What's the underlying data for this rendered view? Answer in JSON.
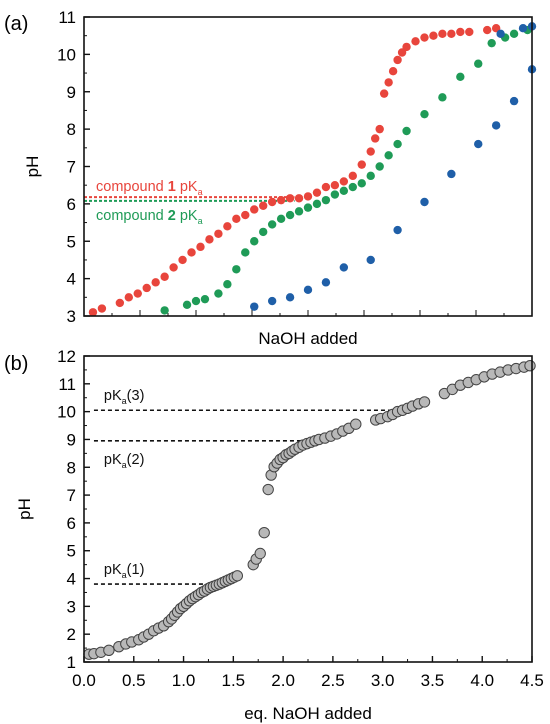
{
  "chart_data": [
    {
      "panel_label": "(a)",
      "type": "scatter",
      "title": "",
      "xlabel": "NaOH added",
      "ylabel": "pH",
      "xlim": [
        0,
        1
      ],
      "ylim": [
        3,
        11
      ],
      "yticks": [
        3,
        4,
        5,
        6,
        7,
        8,
        9,
        10,
        11
      ],
      "x_tick_labels_shown": false,
      "grid": false,
      "legend": "none",
      "series": [
        {
          "color": "#e8453c",
          "x": [
            0.02,
            0.04,
            0.08,
            0.1,
            0.12,
            0.14,
            0.16,
            0.18,
            0.2,
            0.22,
            0.24,
            0.26,
            0.28,
            0.3,
            0.32,
            0.34,
            0.36,
            0.38,
            0.4,
            0.42,
            0.44,
            0.46,
            0.48,
            0.5,
            0.52,
            0.54,
            0.56,
            0.58,
            0.6,
            0.62,
            0.64,
            0.65,
            0.66,
            0.67,
            0.68,
            0.69,
            0.7,
            0.71,
            0.72,
            0.74,
            0.76,
            0.78,
            0.8,
            0.82,
            0.84,
            0.86,
            0.9,
            0.92
          ],
          "y": [
            3.1,
            3.2,
            3.35,
            3.5,
            3.6,
            3.75,
            3.9,
            4.05,
            4.3,
            4.5,
            4.7,
            4.85,
            5.05,
            5.2,
            5.4,
            5.6,
            5.7,
            5.85,
            5.95,
            6.05,
            6.1,
            6.15,
            6.15,
            6.2,
            6.3,
            6.45,
            6.5,
            6.6,
            6.75,
            7.05,
            7.4,
            7.75,
            8.0,
            8.95,
            9.25,
            9.55,
            9.85,
            10.05,
            10.2,
            10.35,
            10.45,
            10.5,
            10.55,
            10.55,
            10.6,
            10.6,
            10.65,
            10.7
          ]
        },
        {
          "color": "#1f9b57",
          "x": [
            0.18,
            0.23,
            0.25,
            0.27,
            0.3,
            0.32,
            0.34,
            0.36,
            0.38,
            0.4,
            0.42,
            0.44,
            0.46,
            0.48,
            0.5,
            0.52,
            0.54,
            0.56,
            0.58,
            0.6,
            0.62,
            0.64,
            0.66,
            0.68,
            0.7,
            0.72,
            0.76,
            0.8,
            0.84,
            0.88,
            0.91,
            0.94,
            0.96,
            0.99
          ],
          "y": [
            3.15,
            3.3,
            3.4,
            3.45,
            3.6,
            3.85,
            4.25,
            4.7,
            5.0,
            5.25,
            5.45,
            5.6,
            5.7,
            5.8,
            5.9,
            6.0,
            6.1,
            6.25,
            6.35,
            6.45,
            6.55,
            6.75,
            7.0,
            7.3,
            7.6,
            7.95,
            8.4,
            8.85,
            9.4,
            9.75,
            10.3,
            10.45,
            10.55,
            10.65
          ]
        },
        {
          "color": "#1f5fa8",
          "x": [
            0.38,
            0.42,
            0.46,
            0.5,
            0.54,
            0.58,
            0.64,
            0.7,
            0.76,
            0.82,
            0.88,
            0.92,
            0.96,
            1.0
          ],
          "y": [
            3.25,
            3.4,
            3.5,
            3.7,
            3.9,
            4.3,
            4.5,
            5.3,
            6.05,
            6.8,
            7.6,
            8.1,
            8.75,
            9.6
          ]
        },
        {
          "color": "#1f5fa8",
          "x": [
            0.93,
            0.98,
            1.0
          ],
          "y": [
            10.55,
            10.7,
            10.75
          ]
        }
      ],
      "reference_lines": [
        {
          "y": 6.18,
          "color": "#e8453c",
          "label_prefix": "compound ",
          "label_bold": "1",
          "label_suffix": " pK",
          "label_sub": "a"
        },
        {
          "y": 6.08,
          "color": "#1f9b57",
          "label_prefix": "compound ",
          "label_bold": "2",
          "label_suffix": " pK",
          "label_sub": "a"
        }
      ]
    },
    {
      "panel_label": "(b)",
      "type": "scatter",
      "title": "",
      "xlabel": "eq. NaOH added",
      "ylabel": "pH",
      "xlim": [
        0,
        4.5
      ],
      "ylim": [
        1,
        12
      ],
      "xticks": [
        0.0,
        0.5,
        1.0,
        1.5,
        2.0,
        2.5,
        3.0,
        3.5,
        4.0,
        4.5
      ],
      "xtick_labels": [
        "0.0",
        "0.5",
        "1.0",
        "1.5",
        "2.0",
        "2.5",
        "3.0",
        "3.5",
        "4.0",
        "4.5"
      ],
      "yticks": [
        1,
        2,
        3,
        4,
        5,
        6,
        7,
        8,
        9,
        10,
        11,
        12
      ],
      "grid": false,
      "legend": "none",
      "series": [
        {
          "color": "#b8b8b8",
          "x": [
            0.05,
            0.1,
            0.17,
            0.25,
            0.35,
            0.42,
            0.48,
            0.55,
            0.6,
            0.65,
            0.7,
            0.75,
            0.8,
            0.85,
            0.88,
            0.91,
            0.94,
            0.97,
            1.0,
            1.03,
            1.06,
            1.09,
            1.12,
            1.15,
            1.18,
            1.21,
            1.24,
            1.27,
            1.3,
            1.33,
            1.36,
            1.39,
            1.42,
            1.45,
            1.48,
            1.51,
            1.54,
            1.7,
            1.73,
            1.77,
            1.81,
            1.85,
            1.88,
            1.91,
            1.94,
            1.97,
            2.0,
            2.03,
            2.06,
            2.09,
            2.12,
            2.16,
            2.2,
            2.24,
            2.28,
            2.32,
            2.36,
            2.42,
            2.48,
            2.54,
            2.6,
            2.66,
            2.73,
            2.93,
            2.98,
            3.05,
            3.1,
            3.15,
            3.2,
            3.25,
            3.3,
            3.36,
            3.42,
            3.62,
            3.7,
            3.78,
            3.86,
            3.94,
            4.02,
            4.1,
            4.18,
            4.26,
            4.34,
            4.42,
            4.48
          ],
          "y": [
            1.28,
            1.3,
            1.35,
            1.42,
            1.55,
            1.65,
            1.72,
            1.8,
            1.9,
            2.0,
            2.12,
            2.22,
            2.3,
            2.45,
            2.55,
            2.68,
            2.8,
            2.92,
            3.0,
            3.1,
            3.2,
            3.28,
            3.35,
            3.42,
            3.5,
            3.55,
            3.62,
            3.68,
            3.72,
            3.76,
            3.8,
            3.85,
            3.9,
            3.95,
            4.0,
            4.05,
            4.1,
            4.5,
            4.7,
            4.9,
            5.65,
            7.2,
            7.72,
            8.02,
            8.15,
            8.28,
            8.35,
            8.45,
            8.5,
            8.58,
            8.65,
            8.72,
            8.8,
            8.85,
            8.9,
            8.95,
            9.0,
            9.05,
            9.12,
            9.2,
            9.3,
            9.4,
            9.55,
            9.7,
            9.75,
            9.82,
            9.9,
            10.0,
            10.05,
            10.12,
            10.2,
            10.28,
            10.35,
            10.65,
            10.8,
            10.95,
            11.05,
            11.15,
            11.25,
            11.35,
            11.42,
            11.5,
            11.55,
            11.6,
            11.65
          ]
        }
      ],
      "reference_lines": [
        {
          "y": 3.8,
          "x_end": 1.42,
          "label_pre": "pK",
          "label_sub": "a",
          "label_post": "(1)",
          "label_pos": "above"
        },
        {
          "y": 8.95,
          "x_end": 2.28,
          "label_pre": "pK",
          "label_sub": "a",
          "label_post": "(2)",
          "label_pos": "below"
        },
        {
          "y": 10.05,
          "x_end": 3.2,
          "label_pre": "pK",
          "label_sub": "a",
          "label_post": "(3)",
          "label_pos": "above"
        }
      ]
    }
  ]
}
